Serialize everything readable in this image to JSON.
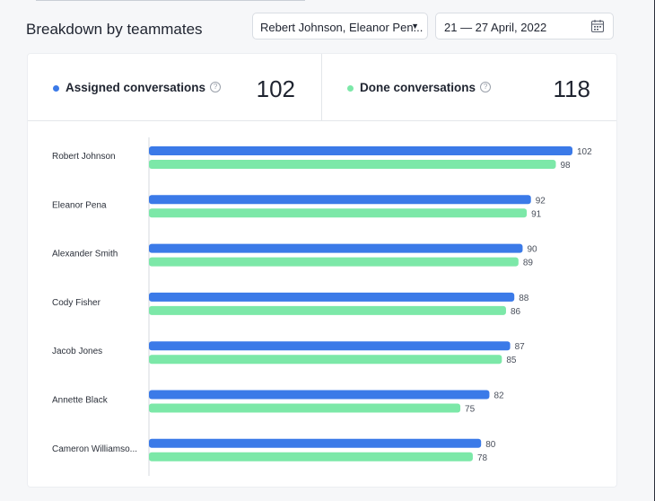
{
  "header": {
    "title": "Breakdown by teammates",
    "teammate_select": "Rebert Johnson, Eleanor Pen...",
    "date_range": "21 — 27 April, 2022"
  },
  "kpis": [
    {
      "label": "Assigned conversations",
      "value": "102",
      "color": "#3b7ae8",
      "help": "?"
    },
    {
      "label": "Done conversations",
      "value": "118",
      "color": "#7ce8a8",
      "help": "?"
    }
  ],
  "icons": {
    "dropdown": "caret-down-icon",
    "date": "calendar-icon",
    "help": "question-circle-icon"
  },
  "chart_data": {
    "type": "bar",
    "orientation": "horizontal",
    "categories": [
      "Robert Johnson",
      "Eleanor Pena",
      "Alexander Smith",
      "Cody Fisher",
      "Jacob Jones",
      "Annette Black",
      "Cameron Williamso..."
    ],
    "series": [
      {
        "name": "Assigned conversations",
        "color": "#3b7ae8",
        "values": [
          102,
          92,
          90,
          88,
          87,
          82,
          80
        ]
      },
      {
        "name": "Done conversations",
        "color": "#7ce8a8",
        "values": [
          98,
          91,
          89,
          86,
          85,
          75,
          78
        ]
      }
    ],
    "xlim": [
      0,
      102
    ],
    "grid": false,
    "title": "",
    "xlabel": "",
    "ylabel": ""
  }
}
